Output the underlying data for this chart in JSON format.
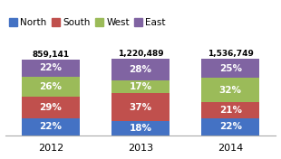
{
  "years": [
    "2012",
    "2013",
    "2014"
  ],
  "totals": [
    "859,141",
    "1,220,489",
    "1,536,749"
  ],
  "series": {
    "North": [
      22,
      18,
      22
    ],
    "South": [
      29,
      37,
      21
    ],
    "West": [
      26,
      17,
      32
    ],
    "East": [
      22,
      28,
      25
    ]
  },
  "colors": {
    "North": "#4472C4",
    "South": "#C0504D",
    "West": "#9BBB59",
    "East": "#8064A2"
  },
  "legend_order": [
    "North",
    "South",
    "West",
    "East"
  ],
  "bar_width": 0.65,
  "text_color_inside": "#FFFFFF",
  "text_color_total": "#000000",
  "fontsize_pct": 7.5,
  "fontsize_total": 6.5,
  "fontsize_legend": 7.5,
  "fontsize_xtick": 8,
  "ylim_max": 140
}
